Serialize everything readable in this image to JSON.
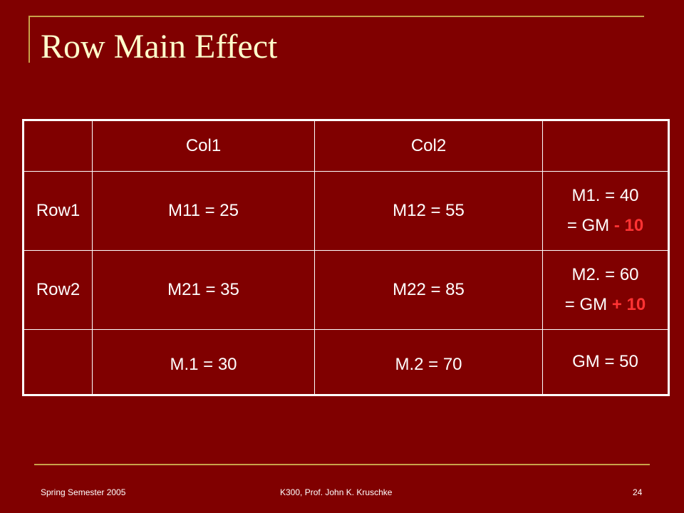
{
  "slide": {
    "title": "Row Main Effect",
    "page_number": "24",
    "accent_color": "#c8a24a",
    "background_color": "#800000",
    "highlight_color": "#ff3333"
  },
  "table": {
    "headers": [
      "",
      "Col1",
      "Col2",
      ""
    ],
    "rows": [
      {
        "label": "Row1",
        "cells": [
          "M11 = 25",
          "M12 = 55"
        ],
        "marginal_line1": "M1. = 40",
        "marginal_line2_prefix": "= GM",
        "marginal_line2_effect": "- 10"
      },
      {
        "label": "Row2",
        "cells": [
          "M21 = 35",
          "M22 = 85"
        ],
        "marginal_line1": "M2. = 60",
        "marginal_line2_prefix": "= GM",
        "marginal_line2_effect": "+ 10"
      }
    ],
    "column_means": [
      "M.1 = 30",
      "M.2 = 70"
    ],
    "grand_mean": "GM = 50"
  },
  "footer": {
    "left": "Spring Semester 2005",
    "center": "K300, Prof. John K. Kruschke"
  }
}
